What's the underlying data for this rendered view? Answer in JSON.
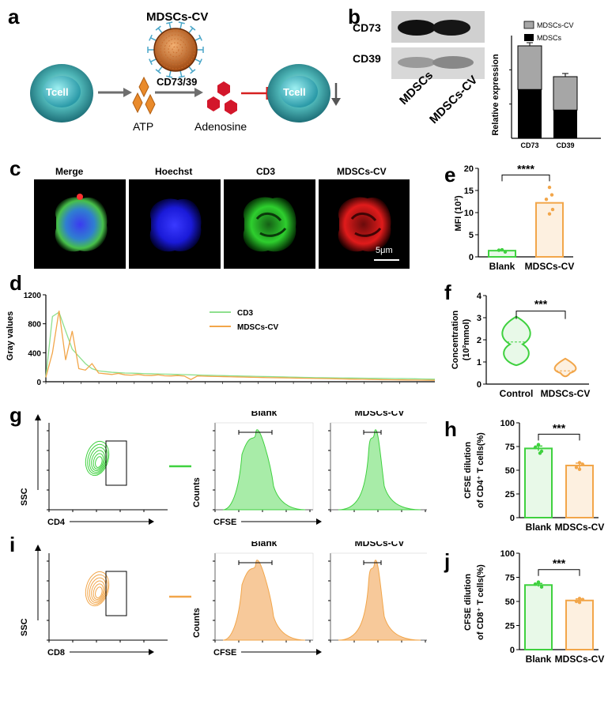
{
  "panels": {
    "a": "a",
    "b": "b",
    "c": "c",
    "d": "d",
    "e": "e",
    "f": "f",
    "g": "g",
    "h": "h",
    "i": "i",
    "j": "j"
  },
  "panel_a": {
    "vesicle_label": "MDSCs-CV",
    "tcell_label": "Tcell",
    "enzyme_label": "CD73/39",
    "atp_label": "ATP",
    "adenosine_label": "Adenosine"
  },
  "panel_b": {
    "blot_labels": [
      "CD73",
      "CD39"
    ],
    "lane_labels": [
      "MDSCs",
      "MDSCs-CV"
    ],
    "legend": [
      "MDSCs-CV",
      "MDSCs"
    ],
    "ylabel": "Relative expression",
    "categories": [
      "CD73",
      "CD39"
    ]
  },
  "panel_c": {
    "titles": [
      "Merge",
      "Hoechst",
      "CD3",
      "MDSCs-CV"
    ],
    "scale_bar": "5μm"
  },
  "panel_g": {
    "xlabel": "CD4",
    "ylabel": "SSC",
    "hist_titles": [
      "Blank",
      "MDSCs-CV"
    ],
    "hist_ylabel": "Counts",
    "hist_xlabel": "CFSE"
  },
  "panel_i": {
    "xlabel": "CD8",
    "ylabel": "SSC",
    "hist_titles": [
      "Blank",
      "MDSCs-CV"
    ],
    "hist_ylabel": "Counts",
    "hist_xlabel": "CFSE"
  },
  "colors": {
    "green": "#3fd13f",
    "orange": "#f2a64a",
    "grey": "#a6a6a6",
    "red": "#cc1f2a"
  },
  "chart_data": [
    {
      "id": "b",
      "type": "bar",
      "stacked": true,
      "categories": [
        "CD73",
        "CD39"
      ],
      "series": [
        {
          "name": "MDSCs",
          "values": [
            0.57,
            0.33
          ]
        },
        {
          "name": "MDSCs-CV",
          "values": [
            0.51,
            0.39
          ]
        }
      ],
      "ylabel": "Relative expression"
    },
    {
      "id": "d",
      "type": "line",
      "ylabel": "Gray values",
      "yticks": [
        0,
        400,
        800,
        1200
      ],
      "ylim": [
        0,
        1200
      ],
      "series": [
        {
          "name": "CD3"
        },
        {
          "name": "MDSCs-CV"
        }
      ]
    },
    {
      "id": "e",
      "type": "bar",
      "categories": [
        "Blank",
        "MDSCs-CV"
      ],
      "values": [
        1.4,
        12.2
      ],
      "ylabel": "MFI (10³)",
      "yticks": [
        0,
        5,
        10,
        15,
        20
      ],
      "ylim": [
        0,
        20
      ],
      "significance": "****"
    },
    {
      "id": "f",
      "type": "violin",
      "categories": [
        "Control",
        "MDSCs-CV"
      ],
      "medians": [
        1.9,
        0.6
      ],
      "ylabel": "Concentration (10²mmol)",
      "yticks": [
        0,
        1,
        2,
        3,
        4
      ],
      "ylim": [
        0,
        4
      ],
      "significance": "***"
    },
    {
      "id": "h",
      "type": "bar",
      "categories": [
        "Blank",
        "MDSCs-CV"
      ],
      "values": [
        73,
        55
      ],
      "ylabel": "CFSE dilution of CD4⁺ T cells(%)",
      "yticks": [
        0,
        25,
        50,
        75,
        100
      ],
      "ylim": [
        0,
        100
      ],
      "significance": "***"
    },
    {
      "id": "j",
      "type": "bar",
      "categories": [
        "Blank",
        "MDSCs-CV"
      ],
      "values": [
        67,
        51
      ],
      "ylabel": "CFSE dilution of CD8⁺ T cells(%)",
      "yticks": [
        0,
        25,
        50,
        75,
        100
      ],
      "ylim": [
        0,
        100
      ],
      "significance": "***"
    }
  ]
}
